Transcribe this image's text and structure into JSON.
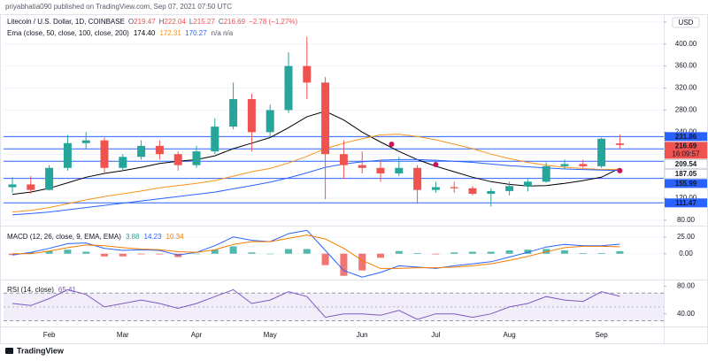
{
  "header": {
    "text": "priyabhatia090 published on TradingView.com, Sep 07, 2021 07:50 UTC"
  },
  "footer": {
    "brand": "TradingView"
  },
  "chart_data": [
    {
      "type": "candlestick",
      "title": "Litecoin / U.S. Dollar, 1D, COINBASE",
      "quote": {
        "labels": [
          "O",
          "H",
          "L",
          "C"
        ],
        "values": [
          219.47,
          222.04,
          215.27,
          216.69
        ],
        "change": "−2.78 (−1.27%)"
      },
      "indicator": "Ema (close, 50, close, 100, close, 200)",
      "indicator_values": [
        {
          "value": 174.4,
          "label": "174.40"
        },
        172.31,
        170.27
      ],
      "indicator_na": "n/a n/a",
      "currency": "USD",
      "countdown": "16:09:57",
      "categories": [
        null,
        null,
        "Feb",
        null,
        null,
        null,
        "Mar",
        null,
        null,
        null,
        "Apr",
        null,
        null,
        null,
        "May",
        null,
        null,
        null,
        null,
        "Jun",
        null,
        null,
        null,
        "Jul",
        null,
        null,
        null,
        "Aug",
        null,
        null,
        null,
        null,
        "Sep",
        null
      ],
      "open": [
        140,
        145,
        135,
        175,
        220,
        225,
        175,
        195,
        215,
        200,
        180,
        205,
        250,
        300,
        240,
        280,
        360,
        330,
        200,
        180,
        175,
        165,
        175,
        135,
        140,
        138,
        128,
        133,
        142,
        150,
        178,
        182,
        178,
        219.47
      ],
      "high": [
        158,
        160,
        180,
        235,
        240,
        230,
        200,
        225,
        225,
        205,
        215,
        265,
        330,
        310,
        290,
        385,
        413,
        340,
        225,
        205,
        190,
        195,
        180,
        150,
        150,
        142,
        138,
        150,
        155,
        185,
        190,
        190,
        230,
        236
      ],
      "low": [
        130,
        128,
        134,
        170,
        210,
        165,
        170,
        190,
        190,
        170,
        175,
        200,
        245,
        205,
        230,
        275,
        300,
        118,
        155,
        165,
        150,
        160,
        110,
        130,
        130,
        125,
        105,
        125,
        132,
        148,
        172,
        175,
        175,
        210
      ],
      "close": [
        145,
        135,
        175,
        220,
        225,
        175,
        195,
        215,
        200,
        180,
        205,
        250,
        300,
        240,
        280,
        360,
        330,
        200,
        180,
        175,
        165,
        175,
        135,
        140,
        138,
        128,
        133,
        142,
        150,
        178,
        182,
        178,
        228,
        216.69
      ],
      "up_color": "#26a69a",
      "down_color": "#ef5350",
      "series": [
        {
          "color": "#000000",
          "values": [
            127,
            131,
            138,
            148,
            158,
            165,
            170,
            176,
            183,
            187,
            190,
            197,
            210,
            220,
            230,
            248,
            268,
            278,
            262,
            240,
            222,
            205,
            190,
            178,
            168,
            158,
            150,
            145,
            142,
            143,
            147,
            152,
            158,
            174.4
          ]
        },
        {
          "color": "#f7931a",
          "values": [
            95,
            98,
            103,
            110,
            117,
            123,
            128,
            133,
            139,
            143,
            147,
            152,
            160,
            168,
            174,
            184,
            196,
            210,
            220,
            228,
            235,
            236,
            232,
            226,
            218,
            210,
            200,
            192,
            185,
            180,
            176,
            174,
            172,
            172.31
          ]
        },
        {
          "color": "#2962ff",
          "values": [
            90,
            92,
            95,
            99,
            103,
            107,
            111,
            115,
            119,
            123,
            127,
            131,
            137,
            143,
            149,
            157,
            166,
            176,
            182,
            186,
            189,
            190,
            190,
            189,
            187,
            185,
            182,
            179,
            177,
            175,
            173,
            172,
            171,
            170.27
          ]
        }
      ],
      "levels": [
        {
          "value": 231.86,
          "label_style": "filled"
        },
        {
          "value": 209.54,
          "label_style": "outline"
        },
        {
          "value": 187.05,
          "label_style": "outline"
        },
        {
          "value": 155.99,
          "label_style": "filled"
        },
        {
          "value": 111.47,
          "label_style": "filled"
        }
      ],
      "level_color": "#2962ff",
      "cross_markers": [
        {
          "at": 20.6,
          "value": 218
        },
        {
          "at": 23,
          "value": 181
        },
        {
          "at": 33,
          "value": 170
        }
      ],
      "marker_color": "#c2185b",
      "ylim": [
        75,
        451
      ],
      "yticks": [
        {
          "value": 80,
          "label": "80.00"
        },
        {
          "value": 120,
          "label": "120.00"
        },
        {
          "value": 160,
          "label": "160.00"
        },
        {
          "value": 200,
          "label": "200.00"
        },
        {
          "value": 240,
          "label": "240.00"
        },
        {
          "value": 280,
          "label": "280.00"
        },
        {
          "value": 320,
          "label": "320.00"
        },
        {
          "value": 360,
          "label": "360.00"
        },
        {
          "value": 400,
          "label": "400.00"
        },
        {
          "value": 440,
          "label": "440.00"
        }
      ],
      "grid": true
    },
    {
      "type": "macd",
      "title": "MACD (12, 26, close, 9, EMA, EMA)",
      "legend_values": [
        3.88,
        14.23,
        10.34
      ],
      "histogram": [
        -2,
        2,
        4,
        6,
        3,
        -4,
        -4,
        -1,
        -1,
        -5,
        0,
        6,
        11,
        2,
        0,
        7,
        7,
        -17,
        -33,
        -25,
        -6,
        4,
        1,
        -1,
        2,
        3,
        3,
        5,
        6,
        7,
        5,
        1,
        1,
        3.88
      ],
      "up_color": "#26a69a",
      "down_color": "#ef5350",
      "series": [
        {
          "color": "#2962ff",
          "values": [
            -2,
            2,
            8,
            15,
            16,
            8,
            5,
            6,
            5,
            -2,
            2,
            12,
            25,
            20,
            18,
            30,
            35,
            5,
            -25,
            -35,
            -28,
            -18,
            -20,
            -22,
            -18,
            -15,
            -12,
            -5,
            2,
            10,
            14,
            12,
            12,
            14.23
          ]
        },
        {
          "color": "#f57c00",
          "values": [
            0,
            0,
            4,
            9,
            13,
            12,
            9,
            7,
            6,
            3,
            2,
            6,
            14,
            18,
            18,
            23,
            28,
            22,
            8,
            -10,
            -22,
            -22,
            -21,
            -21,
            -20,
            -18,
            -15,
            -10,
            -4,
            3,
            9,
            11,
            11,
            10.34
          ]
        }
      ],
      "ylim": [
        -36,
        38
      ],
      "yticks": [
        {
          "value": 0,
          "label": "0.00"
        },
        {
          "value": 25,
          "label": "25.00"
        }
      ],
      "grid": true
    },
    {
      "type": "rsi",
      "title": "RSI (14, close)",
      "legend_values": [
        65.41
      ],
      "values": [
        55,
        52,
        62,
        75,
        68,
        50,
        55,
        60,
        55,
        48,
        55,
        65,
        75,
        55,
        60,
        72,
        65,
        35,
        40,
        40,
        38,
        45,
        32,
        40,
        40,
        35,
        40,
        50,
        55,
        65,
        60,
        58,
        72,
        65.41
      ],
      "color": "#7e57c2",
      "band": [
        30,
        70
      ],
      "midline": 50,
      "ylim": [
        23,
        87
      ],
      "yticks": [
        {
          "value": 40,
          "label": "40.00"
        },
        {
          "value": 80,
          "label": "80.00"
        }
      ],
      "grid": false
    }
  ]
}
